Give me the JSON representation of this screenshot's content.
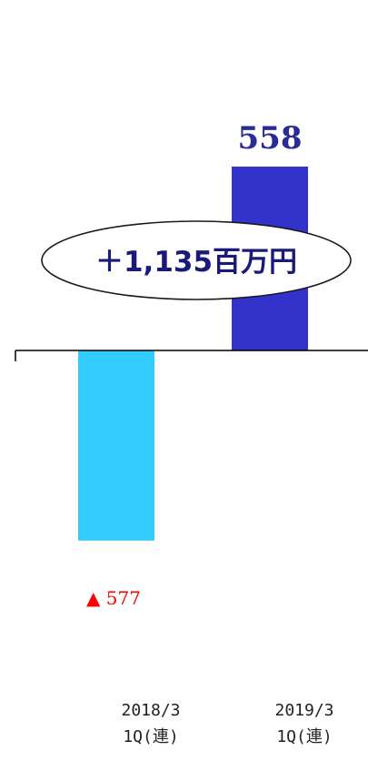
{
  "chart_data": {
    "type": "bar",
    "categories": [
      "2018/3\n1Q(連)",
      "2019/3\n1Q(連)"
    ],
    "values": [
      -577,
      558
    ],
    "value_labels": [
      "▲ 577",
      "558"
    ],
    "bar_colors": [
      "#33ccff",
      "#3333cc"
    ],
    "ylim": [
      -720,
      800
    ],
    "grid": false,
    "legend": "none",
    "callout": "＋1,135百万円",
    "title": "",
    "xlabel": "",
    "ylabel": ""
  },
  "colors": {
    "negative_label": "#ff0000",
    "positive_label": "#2a2a99",
    "axis": "#000000",
    "callout_text": "#1a1a7a"
  }
}
